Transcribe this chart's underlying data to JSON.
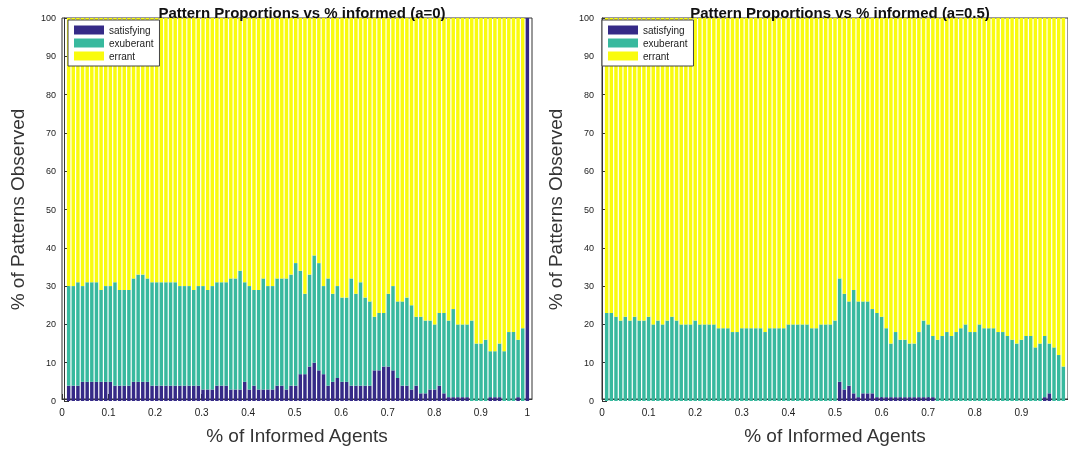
{
  "chart_data": [
    {
      "type": "bar",
      "stacked": true,
      "title": "Pattern Proportions vs % informed (a=0)",
      "xlabel": "% of Informed Agents",
      "ylabel": "% of Patterns Observed",
      "legend": "top left",
      "xlim": [
        0,
        1.01
      ],
      "xticks": [
        0,
        0.1,
        0.2,
        0.3,
        0.4,
        0.5,
        0.6,
        0.7,
        0.8,
        0.9,
        1
      ],
      "ylim": [
        0,
        100
      ],
      "yticks": [
        0,
        10,
        20,
        30,
        40,
        50,
        60,
        70,
        80,
        90,
        100
      ],
      "x": [
        0.01,
        0.02,
        0.03,
        0.04,
        0.05,
        0.06,
        0.07,
        0.08,
        0.09,
        0.1,
        0.11,
        0.12,
        0.13,
        0.14,
        0.15,
        0.16,
        0.17,
        0.18,
        0.19,
        0.2,
        0.21,
        0.22,
        0.23,
        0.24,
        0.25,
        0.26,
        0.27,
        0.28,
        0.29,
        0.3,
        0.31,
        0.32,
        0.33,
        0.34,
        0.35,
        0.36,
        0.37,
        0.38,
        0.39,
        0.4,
        0.41,
        0.42,
        0.43,
        0.44,
        0.45,
        0.46,
        0.47,
        0.48,
        0.49,
        0.5,
        0.51,
        0.52,
        0.53,
        0.54,
        0.55,
        0.56,
        0.57,
        0.58,
        0.59,
        0.6,
        0.61,
        0.62,
        0.63,
        0.64,
        0.65,
        0.66,
        0.67,
        0.68,
        0.69,
        0.7,
        0.71,
        0.72,
        0.73,
        0.74,
        0.75,
        0.76,
        0.77,
        0.78,
        0.79,
        0.8,
        0.81,
        0.82,
        0.83,
        0.84,
        0.85,
        0.86,
        0.87,
        0.88,
        0.89,
        0.9,
        0.91,
        0.92,
        0.93,
        0.94,
        0.95,
        0.96,
        0.97,
        0.98,
        0.99,
        1
      ],
      "series": [
        {
          "name": "satisfying",
          "color": "#352a87",
          "values": [
            4,
            4,
            4,
            5,
            5,
            5,
            5,
            5,
            5,
            5,
            4,
            4,
            4,
            4,
            5,
            5,
            5,
            5,
            4,
            4,
            4,
            4,
            4,
            4,
            4,
            4,
            4,
            4,
            4,
            3,
            3,
            3,
            4,
            4,
            4,
            3,
            3,
            3,
            5,
            3,
            4,
            3,
            3,
            3,
            3,
            4,
            4,
            3,
            4,
            4,
            7,
            7,
            9,
            10,
            8,
            7,
            4,
            5,
            6,
            5,
            5,
            4,
            4,
            4,
            4,
            4,
            8,
            8,
            9,
            9,
            8,
            6,
            4,
            4,
            3,
            4,
            2,
            2,
            3,
            3,
            4,
            2,
            1,
            1,
            1,
            1,
            1,
            0,
            0,
            0,
            0,
            1,
            1,
            1,
            0,
            0,
            0,
            1,
            0,
            100
          ]
        },
        {
          "name": "exuberant",
          "color": "#38b99e",
          "values": [
            26,
            26,
            27,
            25,
            26,
            26,
            26,
            24,
            25,
            25,
            27,
            25,
            25,
            25,
            27,
            28,
            28,
            27,
            27,
            27,
            27,
            27,
            27,
            27,
            26,
            26,
            26,
            25,
            26,
            27,
            26,
            27,
            27,
            27,
            27,
            29,
            29,
            31,
            26,
            27,
            25,
            26,
            29,
            27,
            27,
            28,
            28,
            29,
            29,
            32,
            27,
            21,
            24,
            28,
            28,
            23,
            28,
            23,
            24,
            22,
            22,
            28,
            24,
            27,
            23,
            22,
            14,
            15,
            14,
            19,
            22,
            20,
            22,
            23,
            22,
            18,
            20,
            19,
            18,
            17,
            19,
            21,
            20,
            23,
            19,
            19,
            19,
            21,
            15,
            15,
            16,
            12,
            12,
            14,
            13,
            18,
            18,
            15,
            19,
            0
          ]
        },
        {
          "name": "errant",
          "color": "#f9fb0e",
          "values": [
            70,
            70,
            69,
            70,
            69,
            69,
            69,
            71,
            70,
            70,
            69,
            71,
            71,
            71,
            68,
            67,
            67,
            68,
            69,
            69,
            69,
            69,
            69,
            69,
            70,
            70,
            70,
            71,
            70,
            70,
            71,
            70,
            69,
            69,
            69,
            68,
            68,
            66,
            69,
            70,
            71,
            71,
            68,
            70,
            70,
            68,
            68,
            68,
            67,
            64,
            66,
            72,
            67,
            62,
            64,
            70,
            68,
            72,
            70,
            73,
            73,
            68,
            72,
            69,
            73,
            74,
            78,
            77,
            77,
            72,
            70,
            74,
            74,
            73,
            75,
            78,
            78,
            79,
            79,
            80,
            77,
            77,
            79,
            76,
            80,
            80,
            80,
            79,
            85,
            85,
            84,
            87,
            87,
            85,
            87,
            82,
            82,
            84,
            81,
            0
          ]
        }
      ]
    },
    {
      "type": "bar",
      "stacked": true,
      "title": "Pattern Proportions vs % informed (a=0.5)",
      "xlabel": "% of Informed Agents",
      "ylabel": "% of Patterns Observed",
      "legend": "top left",
      "xlim": [
        0,
        1
      ],
      "xticks": [
        0,
        0.1,
        0.2,
        0.3,
        0.4,
        0.5,
        0.6,
        0.7,
        0.8,
        0.9
      ],
      "ylim": [
        0,
        100
      ],
      "yticks": [
        0,
        10,
        20,
        30,
        40,
        50,
        60,
        70,
        80,
        90,
        100
      ],
      "x": [
        0.01,
        0.02,
        0.03,
        0.04,
        0.05,
        0.06,
        0.07,
        0.08,
        0.09,
        0.1,
        0.11,
        0.12,
        0.13,
        0.14,
        0.15,
        0.16,
        0.17,
        0.18,
        0.19,
        0.2,
        0.21,
        0.22,
        0.23,
        0.24,
        0.25,
        0.26,
        0.27,
        0.28,
        0.29,
        0.3,
        0.31,
        0.32,
        0.33,
        0.34,
        0.35,
        0.36,
        0.37,
        0.38,
        0.39,
        0.4,
        0.41,
        0.42,
        0.43,
        0.44,
        0.45,
        0.46,
        0.47,
        0.48,
        0.49,
        0.5,
        0.51,
        0.52,
        0.53,
        0.54,
        0.55,
        0.56,
        0.57,
        0.58,
        0.59,
        0.6,
        0.61,
        0.62,
        0.63,
        0.64,
        0.65,
        0.66,
        0.67,
        0.68,
        0.69,
        0.7,
        0.71,
        0.72,
        0.73,
        0.74,
        0.75,
        0.76,
        0.77,
        0.78,
        0.79,
        0.8,
        0.81,
        0.82,
        0.83,
        0.84,
        0.85,
        0.86,
        0.87,
        0.88,
        0.89,
        0.9,
        0.91,
        0.92,
        0.93,
        0.94,
        0.95,
        0.96,
        0.97,
        0.98,
        0.99
      ],
      "series": [
        {
          "name": "satisfying",
          "color": "#352a87",
          "values": [
            0,
            0,
            0,
            0,
            0,
            0,
            0,
            0,
            0,
            0,
            0,
            0,
            0,
            0,
            0,
            0,
            0,
            0,
            0,
            0,
            0,
            0,
            0,
            0,
            0,
            0,
            0,
            0,
            0,
            0,
            0,
            0,
            0,
            0,
            0,
            0,
            0,
            0,
            0,
            0,
            0,
            0,
            0,
            0,
            0,
            0,
            0,
            0,
            0,
            0,
            5,
            3,
            4,
            2,
            1,
            2,
            2,
            2,
            1,
            1,
            1,
            1,
            1,
            1,
            1,
            1,
            1,
            1,
            1,
            1,
            1,
            0,
            0,
            0,
            0,
            0,
            0,
            0,
            0,
            0,
            0,
            0,
            0,
            0,
            0,
            0,
            0,
            0,
            0,
            0,
            0,
            0,
            0,
            0,
            1,
            2,
            0,
            0,
            0
          ]
        },
        {
          "name": "exuberant",
          "color": "#38b99e",
          "values": [
            23,
            23,
            22,
            21,
            22,
            21,
            22,
            21,
            21,
            22,
            20,
            21,
            20,
            21,
            22,
            21,
            20,
            20,
            20,
            21,
            20,
            20,
            20,
            20,
            19,
            19,
            19,
            18,
            18,
            19,
            19,
            19,
            19,
            19,
            18,
            19,
            19,
            19,
            19,
            20,
            20,
            20,
            20,
            20,
            19,
            19,
            20,
            20,
            20,
            21,
            27,
            25,
            22,
            27,
            25,
            24,
            24,
            22,
            22,
            21,
            18,
            14,
            17,
            15,
            15,
            14,
            14,
            17,
            20,
            19,
            16,
            16,
            17,
            18,
            17,
            18,
            19,
            20,
            18,
            18,
            20,
            19,
            19,
            19,
            18,
            18,
            17,
            16,
            15,
            16,
            17,
            17,
            14,
            15,
            16,
            13,
            14,
            12,
            9
          ]
        },
        {
          "name": "errant",
          "color": "#f9fb0e",
          "values": [
            77,
            77,
            78,
            79,
            78,
            79,
            78,
            79,
            79,
            78,
            80,
            79,
            80,
            79,
            78,
            79,
            80,
            80,
            80,
            79,
            80,
            80,
            80,
            80,
            81,
            81,
            81,
            82,
            82,
            81,
            81,
            81,
            81,
            81,
            82,
            81,
            81,
            81,
            81,
            80,
            80,
            80,
            80,
            80,
            81,
            81,
            80,
            80,
            80,
            79,
            68,
            72,
            74,
            71,
            74,
            74,
            74,
            76,
            77,
            78,
            81,
            85,
            82,
            84,
            84,
            85,
            85,
            82,
            79,
            80,
            83,
            84,
            83,
            82,
            83,
            82,
            81,
            80,
            82,
            82,
            80,
            81,
            81,
            81,
            82,
            82,
            83,
            84,
            85,
            84,
            83,
            83,
            86,
            85,
            83,
            85,
            86,
            88,
            91
          ]
        }
      ]
    }
  ]
}
